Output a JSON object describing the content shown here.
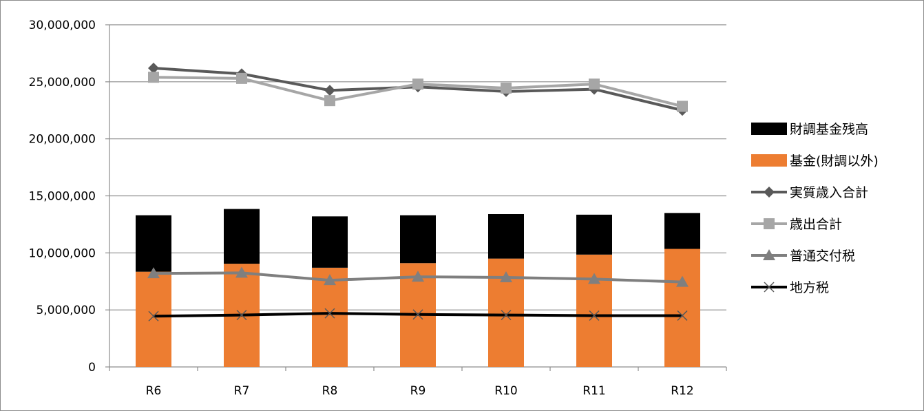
{
  "chart_data": {
    "type": "bar",
    "title": "",
    "xlabel": "",
    "ylabel": "",
    "categories": [
      "R6",
      "R7",
      "R8",
      "R9",
      "R10",
      "R11",
      "R12"
    ],
    "ylim": [
      0,
      30000000
    ],
    "yticks": [
      0,
      5000000,
      10000000,
      15000000,
      20000000,
      25000000,
      30000000
    ],
    "ytick_labels": [
      "0",
      "5,000,000",
      "10,000,000",
      "15,000,000",
      "20,000,000",
      "25,000,000",
      "30,000,000"
    ],
    "grid": true,
    "legend_position": "right",
    "stacked_bars": [
      {
        "name": "基金(財調以外)",
        "color": "#ed7d31",
        "values": [
          8350000,
          9050000,
          8700000,
          9100000,
          9500000,
          9850000,
          10350000
        ]
      },
      {
        "name": "財調基金残高",
        "color": "#000000",
        "values": [
          4950000,
          4800000,
          4500000,
          4200000,
          3900000,
          3500000,
          3150000
        ]
      }
    ],
    "series": [
      {
        "name": "実質歳入合計",
        "type": "line",
        "marker": "diamond",
        "color": "#595959",
        "values": [
          26200000,
          25700000,
          24250000,
          24550000,
          24150000,
          24350000,
          22500000
        ]
      },
      {
        "name": "歳出合計",
        "type": "line",
        "marker": "square",
        "color": "#a6a6a6",
        "values": [
          25400000,
          25300000,
          23350000,
          24800000,
          24450000,
          24800000,
          22850000
        ]
      },
      {
        "name": "普通交付税",
        "type": "line",
        "marker": "triangle",
        "color": "#7f7f7f",
        "values": [
          8200000,
          8250000,
          7600000,
          7900000,
          7850000,
          7700000,
          7450000
        ]
      },
      {
        "name": "地方税",
        "type": "line",
        "marker": "x",
        "color": "#000000",
        "values": [
          4450000,
          4550000,
          4700000,
          4600000,
          4550000,
          4500000,
          4500000
        ]
      }
    ],
    "legend": [
      {
        "name": "財調基金残高",
        "kind": "box",
        "color": "#000000"
      },
      {
        "name": "基金(財調以外)",
        "kind": "box",
        "color": "#ed7d31"
      },
      {
        "name": "実質歳入合計",
        "kind": "line",
        "marker": "diamond",
        "color": "#595959"
      },
      {
        "name": "歳出合計",
        "kind": "line",
        "marker": "square",
        "color": "#a6a6a6"
      },
      {
        "name": "普通交付税",
        "kind": "line",
        "marker": "triangle",
        "color": "#7f7f7f"
      },
      {
        "name": "地方税",
        "kind": "line",
        "marker": "x",
        "color": "#000000"
      }
    ]
  }
}
